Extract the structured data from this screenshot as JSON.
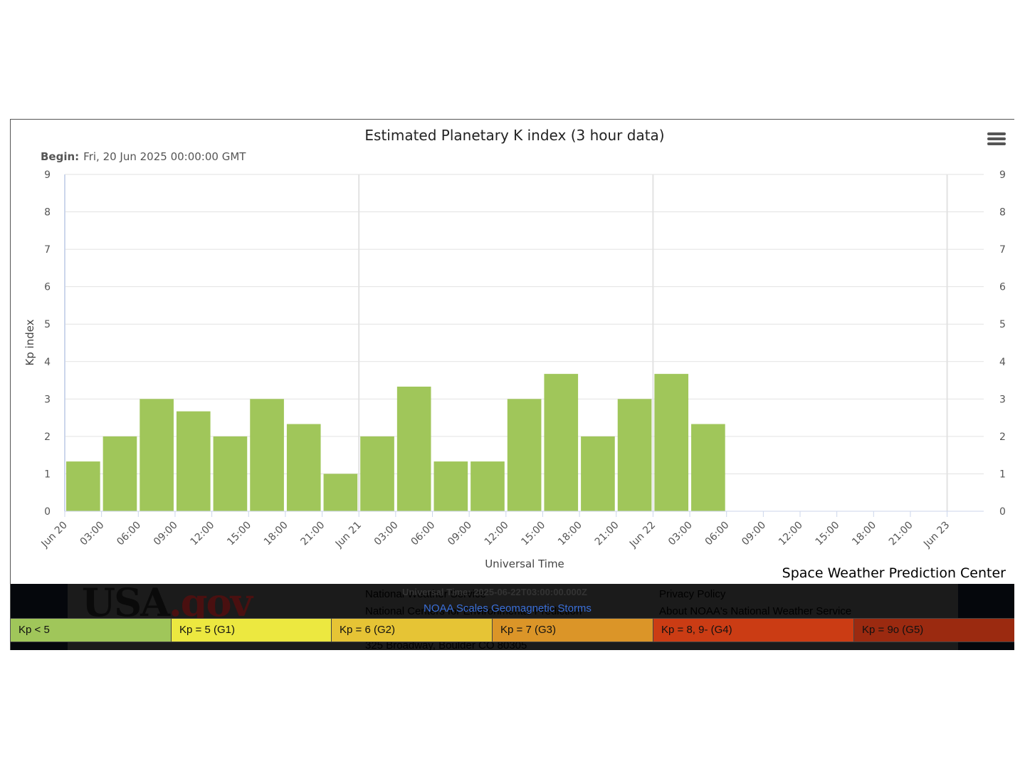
{
  "chart_data": {
    "type": "bar",
    "title": "Estimated Planetary K index (3 hour data)",
    "subtitle_label": "Begin:",
    "subtitle_value": "Fri, 20 Jun 2025 00:00:00 GMT",
    "xlabel": "Universal Time",
    "ylabel": "Kp index",
    "ylim": [
      0,
      9
    ],
    "yticks": [
      "0",
      "1",
      "2",
      "3",
      "4",
      "5",
      "6",
      "7",
      "8",
      "9"
    ],
    "x_tick_labels": [
      "Jun 20",
      "03:00",
      "06:00",
      "09:00",
      "12:00",
      "15:00",
      "18:00",
      "21:00",
      "Jun 21",
      "03:00",
      "06:00",
      "09:00",
      "12:00",
      "15:00",
      "18:00",
      "21:00",
      "Jun 22",
      "03:00",
      "06:00",
      "09:00",
      "12:00",
      "15:00",
      "18:00",
      "21:00",
      "Jun 23"
    ],
    "values": [
      1.33,
      2.0,
      3.0,
      2.67,
      2.0,
      3.0,
      2.33,
      1.0,
      2.0,
      3.33,
      1.33,
      1.33,
      3.0,
      3.67,
      2.0,
      3.0,
      3.67,
      2.33
    ],
    "bar_color": "#a0c65a",
    "grid": true,
    "legend": "bottom"
  },
  "credit": "Space Weather Prediction Center",
  "menu_icon": "hamburger-menu-icon",
  "footer": {
    "logo_usa": "USA",
    "logo_gov": ".gov",
    "org_line1": "National Weather Service",
    "org_line2": "National Centers for Environmental Prediction",
    "address": "325 Broadway, Boulder CO 80305",
    "privacy": "Privacy Policy",
    "about": "About NOAA's National Weather Service",
    "time_overlay": "Universal Time: 2025-06-22T03:00:00.000Z",
    "scale_link": "NOAA Scales Geomagnetic Storms"
  },
  "scale_legend": [
    {
      "label": "Kp < 5",
      "color": "#a0c65a"
    },
    {
      "label": "Kp = 5 (G1)",
      "color": "#ece840"
    },
    {
      "label": "Kp = 6 (G2)",
      "color": "#e6c435"
    },
    {
      "label": "Kp = 7 (G3)",
      "color": "#db9528"
    },
    {
      "label": "Kp = 8, 9- (G4)",
      "color": "#cb3c14"
    },
    {
      "label": "Kp = 9o (G5)",
      "color": "#9b2a10"
    }
  ]
}
